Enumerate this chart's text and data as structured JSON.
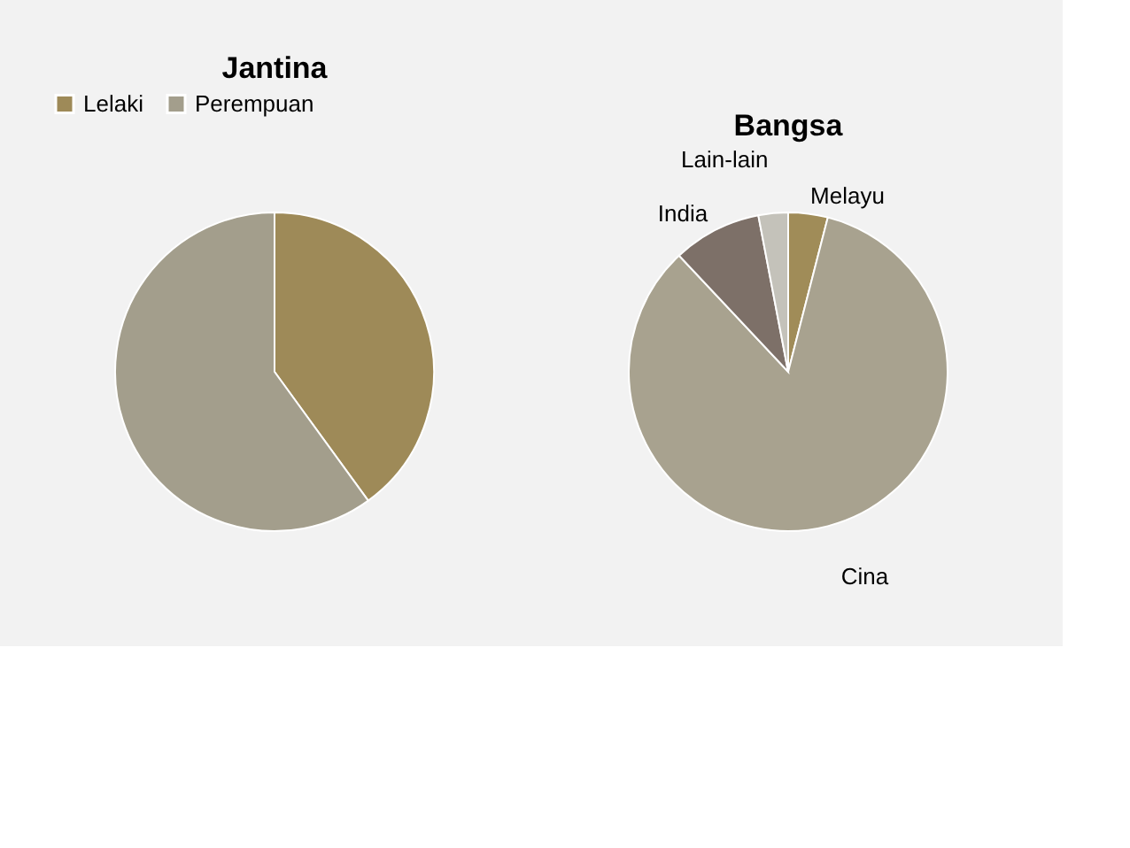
{
  "chart_data": [
    {
      "type": "pie",
      "title": "Jantina",
      "categories": [
        "Lelaki",
        "Perempuan"
      ],
      "values": [
        40,
        60
      ],
      "colors": [
        "#9e8a58",
        "#a39e8c"
      ],
      "legend": "top"
    },
    {
      "type": "pie",
      "title": "Bangsa",
      "categories": [
        "Melayu",
        "Cina",
        "India",
        "Lain-lain"
      ],
      "values": [
        4,
        84,
        9,
        3
      ],
      "colors": [
        "#a08c58",
        "#a8a28f",
        "#7d7068",
        "#c4c2ba"
      ],
      "legend": false
    }
  ]
}
